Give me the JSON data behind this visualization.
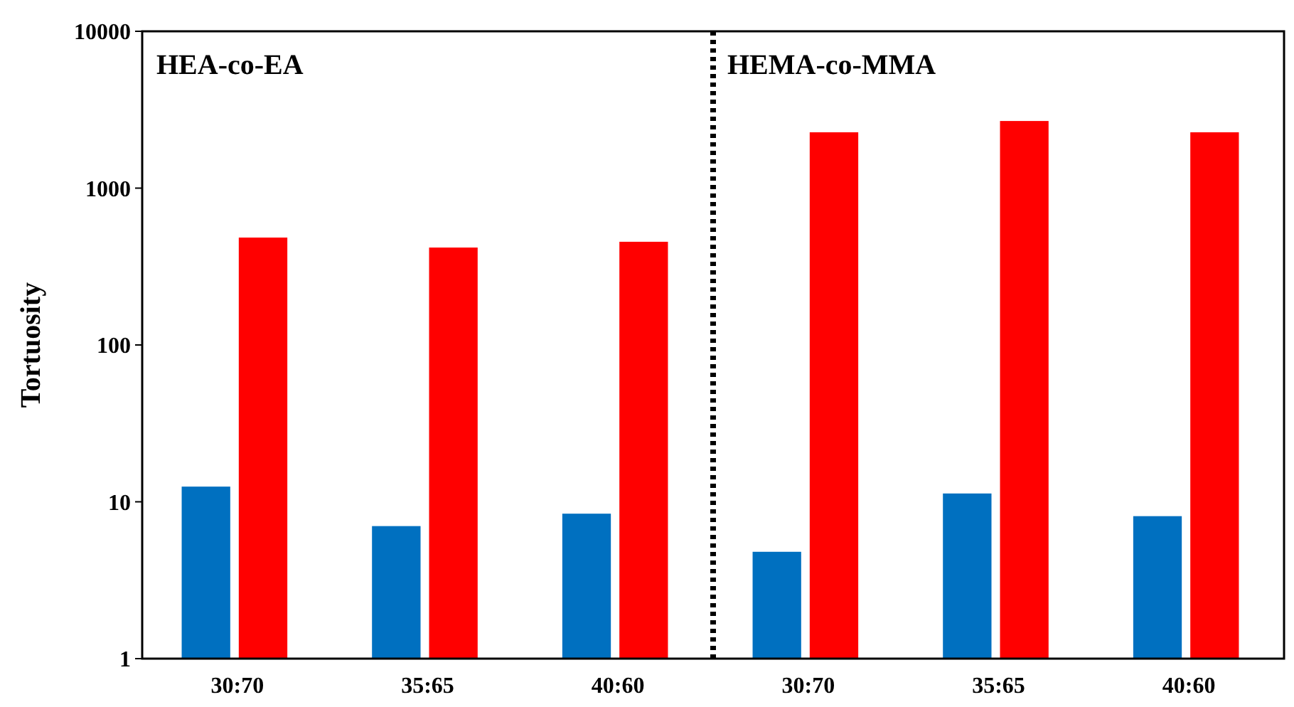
{
  "chart_data": {
    "type": "bar",
    "ylabel": "Tortuosity",
    "categories": [
      "30:70",
      "35:65",
      "40:60",
      "30:70",
      "35:65",
      "40:60"
    ],
    "series": [
      {
        "color": "#0070c0",
        "values": [
          12.5,
          7.0,
          8.4,
          4.8,
          11.3,
          8.1
        ]
      },
      {
        "color": "#ff0000",
        "values": [
          484,
          418,
          455,
          2270,
          2680,
          2270
        ]
      }
    ],
    "log": true,
    "ylim": [
      1,
      10000
    ],
    "yticks": [
      1,
      10,
      100,
      1000,
      10000
    ],
    "grid": false,
    "annotations": [
      "HEA-co-EA",
      "HEMA-co-MMA"
    ]
  }
}
